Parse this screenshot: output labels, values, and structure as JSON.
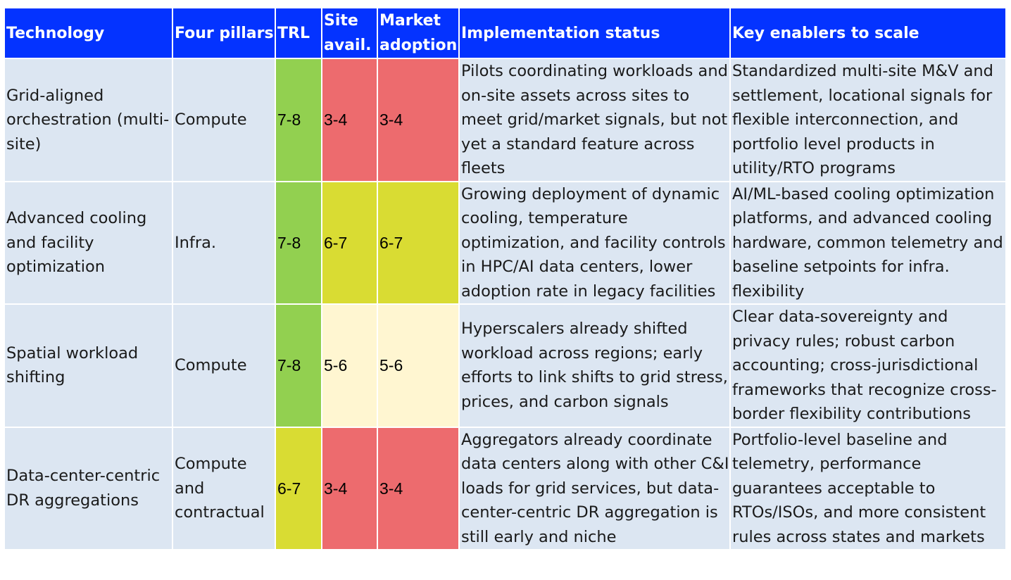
{
  "colors": {
    "header_bg": "#0433ff",
    "header_text": "#ffffff",
    "cell_bg": "#dce6f2",
    "green": "#92d050",
    "yellow": "#d9dc33",
    "light_yellow": "#fff6d1",
    "red": "#ed6b6e"
  },
  "header": {
    "technology": "Technology",
    "pillars": "Four pillars",
    "trl": "TRL",
    "site_l1": "Site",
    "site_l2": "avail.",
    "market_l1": "Market",
    "market_l2": "adoption",
    "status": "Implementation status",
    "enablers": "Key enablers to scale"
  },
  "rows": [
    {
      "technology": "Grid-aligned orchestration (multi-site)",
      "pillars": "Compute",
      "trl": "7-8",
      "trl_level": "green",
      "site": "3-4",
      "site_level": "red",
      "market": "3-4",
      "market_level": "red",
      "status": "Pilots coordinating workloads and on-site assets across sites to meet grid/market signals, but not yet a standard feature across fleets",
      "enablers": "Standardized multi-site M&V and settlement, locational signals for flexible interconnection, and portfolio level products in utility/RTO programs"
    },
    {
      "technology": "Advanced cooling and facility optimization",
      "pillars": "Infra.",
      "trl": "7-8",
      "trl_level": "green",
      "site": "6-7",
      "site_level": "yellow",
      "market": "6-7",
      "market_level": "yellow",
      "status": "Growing deployment of dynamic cooling, temperature optimization, and facility controls in HPC/AI data centers, lower adoption rate in legacy facilities",
      "enablers": "AI/ML-based cooling optimization platforms, and advanced cooling hardware, common telemetry and baseline setpoints for infra. flexibility"
    },
    {
      "technology": "Spatial workload shifting",
      "pillars": "Compute",
      "trl": "7-8",
      "trl_level": "green",
      "site": "5-6",
      "site_level": "light_yellow",
      "market": "5-6",
      "market_level": "light_yellow",
      "status": "Hyperscalers already shifted workload across regions; early efforts to link shifts to grid stress, prices, and carbon signals",
      "enablers": "Clear data-sovereignty and privacy rules; robust carbon accounting; cross-jurisdictional frameworks that recognize cross-border flexibility contributions"
    },
    {
      "technology": "Data-center-centric DR aggregations",
      "pillars": "Compute and contractual",
      "trl": "6-7",
      "trl_level": "yellow",
      "site": "3-4",
      "site_level": "red",
      "market": "3-4",
      "market_level": "red",
      "status": "Aggregators already coordinate data centers along with other C&I loads for grid services, but data-center-centric DR aggregation is still early and niche",
      "enablers": "Portfolio-level baseline and telemetry, performance guarantees acceptable to RTOs/ISOs, and more consistent rules across states and markets"
    }
  ]
}
